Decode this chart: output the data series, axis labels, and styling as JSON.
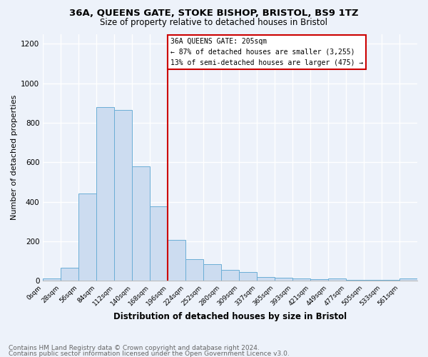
{
  "title1": "36A, QUEENS GATE, STOKE BISHOP, BRISTOL, BS9 1TZ",
  "title2": "Size of property relative to detached houses in Bristol",
  "xlabel": "Distribution of detached houses by size in Bristol",
  "ylabel": "Number of detached properties",
  "bin_labels": [
    "0sqm",
    "28sqm",
    "56sqm",
    "84sqm",
    "112sqm",
    "140sqm",
    "168sqm",
    "196sqm",
    "224sqm",
    "252sqm",
    "280sqm",
    "309sqm",
    "337sqm",
    "365sqm",
    "393sqm",
    "421sqm",
    "449sqm",
    "477sqm",
    "505sqm",
    "533sqm",
    "561sqm"
  ],
  "bar_heights": [
    12,
    65,
    440,
    880,
    865,
    580,
    375,
    205,
    110,
    82,
    55,
    42,
    20,
    15,
    10,
    8,
    10,
    5,
    5,
    5,
    10
  ],
  "bar_color": "#ccdcf0",
  "bar_edge_color": "#6baed6",
  "vline_x": 7,
  "vline_color": "#cc0000",
  "annotation_line1": "36A QUEENS GATE: 205sqm",
  "annotation_line2": "← 87% of detached houses are smaller (3,255)",
  "annotation_line3": "13% of semi-detached houses are larger (475) →",
  "annotation_box_color": "#ffffff",
  "annotation_box_edge": "#cc0000",
  "ylim": [
    0,
    1250
  ],
  "yticks": [
    0,
    200,
    400,
    600,
    800,
    1000,
    1200
  ],
  "footer1": "Contains HM Land Registry data © Crown copyright and database right 2024.",
  "footer2": "Contains public sector information licensed under the Open Government Licence v3.0.",
  "bg_color": "#edf2fa",
  "grid_color": "#ffffff",
  "title1_fontsize": 9.5,
  "title2_fontsize": 8.5,
  "xlabel_fontsize": 8.5,
  "ylabel_fontsize": 8,
  "tick_fontsize": 6.5,
  "ytick_fontsize": 7.5,
  "annot_fontsize": 7,
  "footer_fontsize": 6.5
}
